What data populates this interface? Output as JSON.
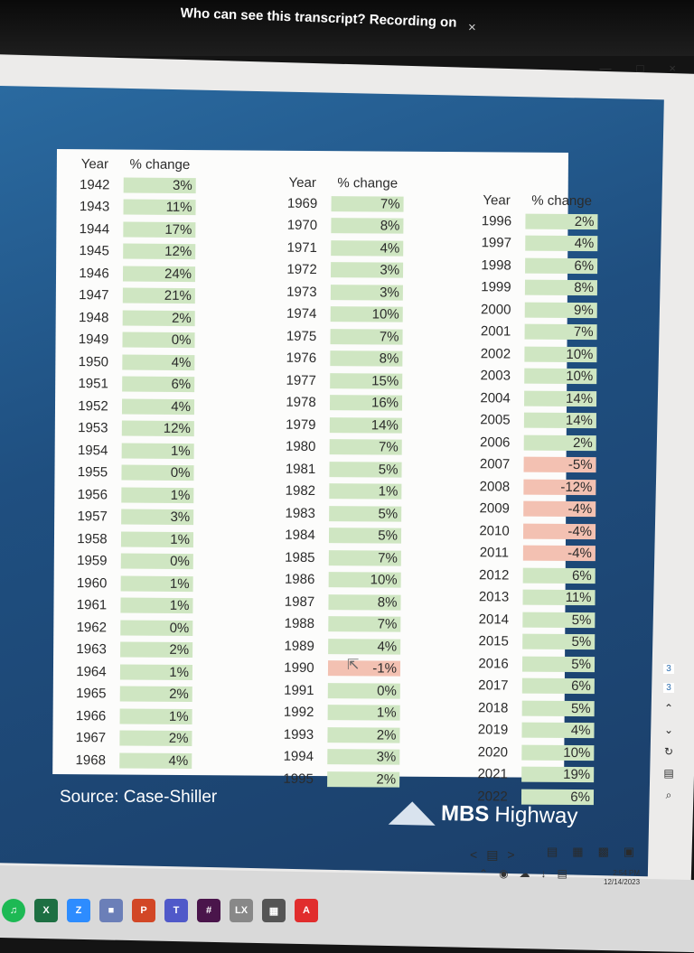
{
  "banner": {
    "text": "Who can see this transcript? Recording on",
    "close": "×"
  },
  "window_controls": {
    "minimize": "—",
    "maximize": "□",
    "close": "×"
  },
  "table": {
    "columns": [
      {
        "year_header": "Year",
        "pct_header": "% change",
        "rows": [
          {
            "year": "1942",
            "pct": "3%"
          },
          {
            "year": "1943",
            "pct": "11%"
          },
          {
            "year": "1944",
            "pct": "17%"
          },
          {
            "year": "1945",
            "pct": "12%"
          },
          {
            "year": "1946",
            "pct": "24%"
          },
          {
            "year": "1947",
            "pct": "21%"
          },
          {
            "year": "1948",
            "pct": "2%"
          },
          {
            "year": "1949",
            "pct": "0%"
          },
          {
            "year": "1950",
            "pct": "4%"
          },
          {
            "year": "1951",
            "pct": "6%"
          },
          {
            "year": "1952",
            "pct": "4%"
          },
          {
            "year": "1953",
            "pct": "12%"
          },
          {
            "year": "1954",
            "pct": "1%"
          },
          {
            "year": "1955",
            "pct": "0%"
          },
          {
            "year": "1956",
            "pct": "1%"
          },
          {
            "year": "1957",
            "pct": "3%"
          },
          {
            "year": "1958",
            "pct": "1%"
          },
          {
            "year": "1959",
            "pct": "0%"
          },
          {
            "year": "1960",
            "pct": "1%"
          },
          {
            "year": "1961",
            "pct": "1%"
          },
          {
            "year": "1962",
            "pct": "0%"
          },
          {
            "year": "1963",
            "pct": "2%"
          },
          {
            "year": "1964",
            "pct": "1%"
          },
          {
            "year": "1965",
            "pct": "2%"
          },
          {
            "year": "1966",
            "pct": "1%"
          },
          {
            "year": "1967",
            "pct": "2%"
          },
          {
            "year": "1968",
            "pct": "4%"
          }
        ]
      },
      {
        "year_header": "Year",
        "pct_header": "% change",
        "rows": [
          {
            "year": "1969",
            "pct": "7%"
          },
          {
            "year": "1970",
            "pct": "8%"
          },
          {
            "year": "1971",
            "pct": "4%"
          },
          {
            "year": "1972",
            "pct": "3%"
          },
          {
            "year": "1973",
            "pct": "3%"
          },
          {
            "year": "1974",
            "pct": "10%"
          },
          {
            "year": "1975",
            "pct": "7%"
          },
          {
            "year": "1976",
            "pct": "8%"
          },
          {
            "year": "1977",
            "pct": "15%"
          },
          {
            "year": "1978",
            "pct": "16%"
          },
          {
            "year": "1979",
            "pct": "14%"
          },
          {
            "year": "1980",
            "pct": "7%"
          },
          {
            "year": "1981",
            "pct": "5%"
          },
          {
            "year": "1982",
            "pct": "1%"
          },
          {
            "year": "1983",
            "pct": "5%"
          },
          {
            "year": "1984",
            "pct": "5%"
          },
          {
            "year": "1985",
            "pct": "7%"
          },
          {
            "year": "1986",
            "pct": "10%"
          },
          {
            "year": "1987",
            "pct": "8%"
          },
          {
            "year": "1988",
            "pct": "7%"
          },
          {
            "year": "1989",
            "pct": "4%"
          },
          {
            "year": "1990",
            "pct": "-1%"
          },
          {
            "year": "1991",
            "pct": "0%"
          },
          {
            "year": "1992",
            "pct": "1%"
          },
          {
            "year": "1993",
            "pct": "2%"
          },
          {
            "year": "1994",
            "pct": "3%"
          },
          {
            "year": "1995",
            "pct": "2%"
          }
        ]
      },
      {
        "year_header": "Year",
        "pct_header": "% change",
        "rows": [
          {
            "year": "1996",
            "pct": "2%"
          },
          {
            "year": "1997",
            "pct": "4%"
          },
          {
            "year": "1998",
            "pct": "6%"
          },
          {
            "year": "1999",
            "pct": "8%"
          },
          {
            "year": "2000",
            "pct": "9%"
          },
          {
            "year": "2001",
            "pct": "7%"
          },
          {
            "year": "2002",
            "pct": "10%"
          },
          {
            "year": "2003",
            "pct": "10%"
          },
          {
            "year": "2004",
            "pct": "14%"
          },
          {
            "year": "2005",
            "pct": "14%"
          },
          {
            "year": "2006",
            "pct": "2%"
          },
          {
            "year": "2007",
            "pct": "-5%"
          },
          {
            "year": "2008",
            "pct": "-12%"
          },
          {
            "year": "2009",
            "pct": "-4%"
          },
          {
            "year": "2010",
            "pct": "-4%"
          },
          {
            "year": "2011",
            "pct": "-4%"
          },
          {
            "year": "2012",
            "pct": "6%"
          },
          {
            "year": "2013",
            "pct": "11%"
          },
          {
            "year": "2014",
            "pct": "5%"
          },
          {
            "year": "2015",
            "pct": "5%"
          },
          {
            "year": "2016",
            "pct": "5%"
          },
          {
            "year": "2017",
            "pct": "6%"
          },
          {
            "year": "2018",
            "pct": "5%"
          },
          {
            "year": "2019",
            "pct": "4%"
          },
          {
            "year": "2020",
            "pct": "10%"
          },
          {
            "year": "2021",
            "pct": "19%"
          },
          {
            "year": "2022",
            "pct": "6%"
          }
        ]
      }
    ]
  },
  "source": "Source: Case-Shiller",
  "logo": {
    "bold": "MBS",
    "rest": "Highway"
  },
  "slide_nav": {
    "prev": "<",
    "next": ">"
  },
  "side_tools": {
    "page1": "3",
    "page2": "3"
  },
  "clock": {
    "time": "2:54 PM",
    "date": "12/14/2023"
  },
  "colors": {
    "positive": "#cfe6c2",
    "negative": "#f3c1b2",
    "slide_bg": "#1f4f80"
  },
  "icons": [
    "spotify-icon",
    "excel-icon",
    "zoom-icon",
    "photos-icon",
    "powerpoint-icon",
    "teams-icon",
    "slack-icon",
    "lexis-icon",
    "calculator-icon",
    "acrobat-icon"
  ]
}
